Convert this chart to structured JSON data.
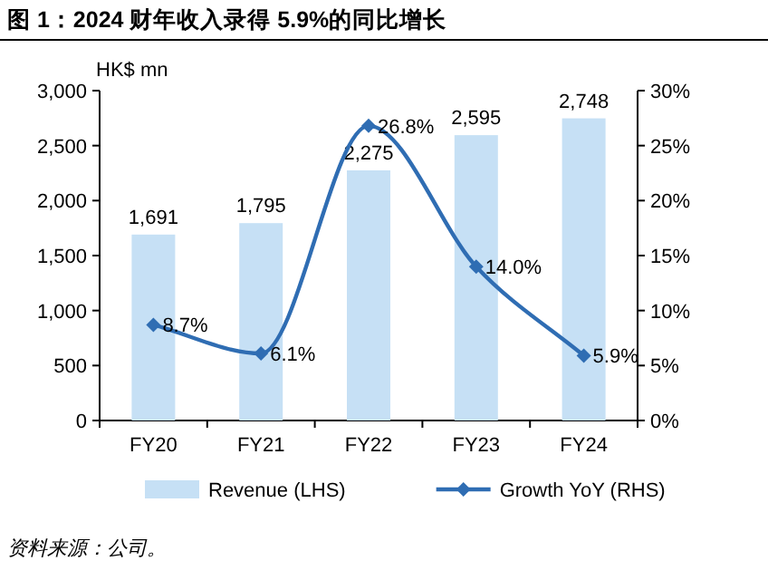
{
  "chart_data": {
    "type": "bar",
    "title": "图 1：2024 财年收入录得 5.9%的同比增长",
    "ylabel": "HK$ mn",
    "annotations": [
      "资料来源：公司。"
    ],
    "categories": [
      "FY20",
      "FY21",
      "FY22",
      "FY23",
      "FY24"
    ],
    "series": [
      {
        "name": "Revenue (LHS)",
        "color": "#c6e0f5",
        "values": [
          1691,
          1795,
          2275,
          2595,
          2748
        ],
        "value_labels": [
          "1,691",
          "1,795",
          "2,275",
          "2,595",
          "2,748"
        ]
      },
      {
        "name": "Growth YoY (RHS)",
        "type": "line",
        "axis": "y2",
        "color": "#2f6db3",
        "marker": "diamond",
        "values": [
          8.7,
          6.1,
          26.8,
          14.0,
          5.9
        ],
        "value_labels": [
          "8.7%",
          "6.1%",
          "26.8%",
          "14.0%",
          "5.9%"
        ]
      }
    ],
    "ylim": [
      0,
      3000
    ],
    "yticks": [
      0,
      500,
      {
        "value": 1000,
        "label": "1,000"
      },
      {
        "value": 1500,
        "label": "1,500"
      },
      {
        "value": 2000,
        "label": "2,000"
      },
      {
        "value": 2500,
        "label": "2,500"
      },
      {
        "value": 3000,
        "label": "3,000"
      }
    ],
    "y2lim": [
      0,
      30
    ],
    "y2ticks": [
      {
        "value": 0,
        "label": "0%"
      },
      {
        "value": 5,
        "label": "5%"
      },
      {
        "value": 10,
        "label": "10%"
      },
      {
        "value": 15,
        "label": "15%"
      },
      {
        "value": 20,
        "label": "20%"
      },
      {
        "value": 25,
        "label": "25%"
      },
      {
        "value": 30,
        "label": "30%"
      }
    ],
    "legend": "bottom",
    "grid": false
  }
}
